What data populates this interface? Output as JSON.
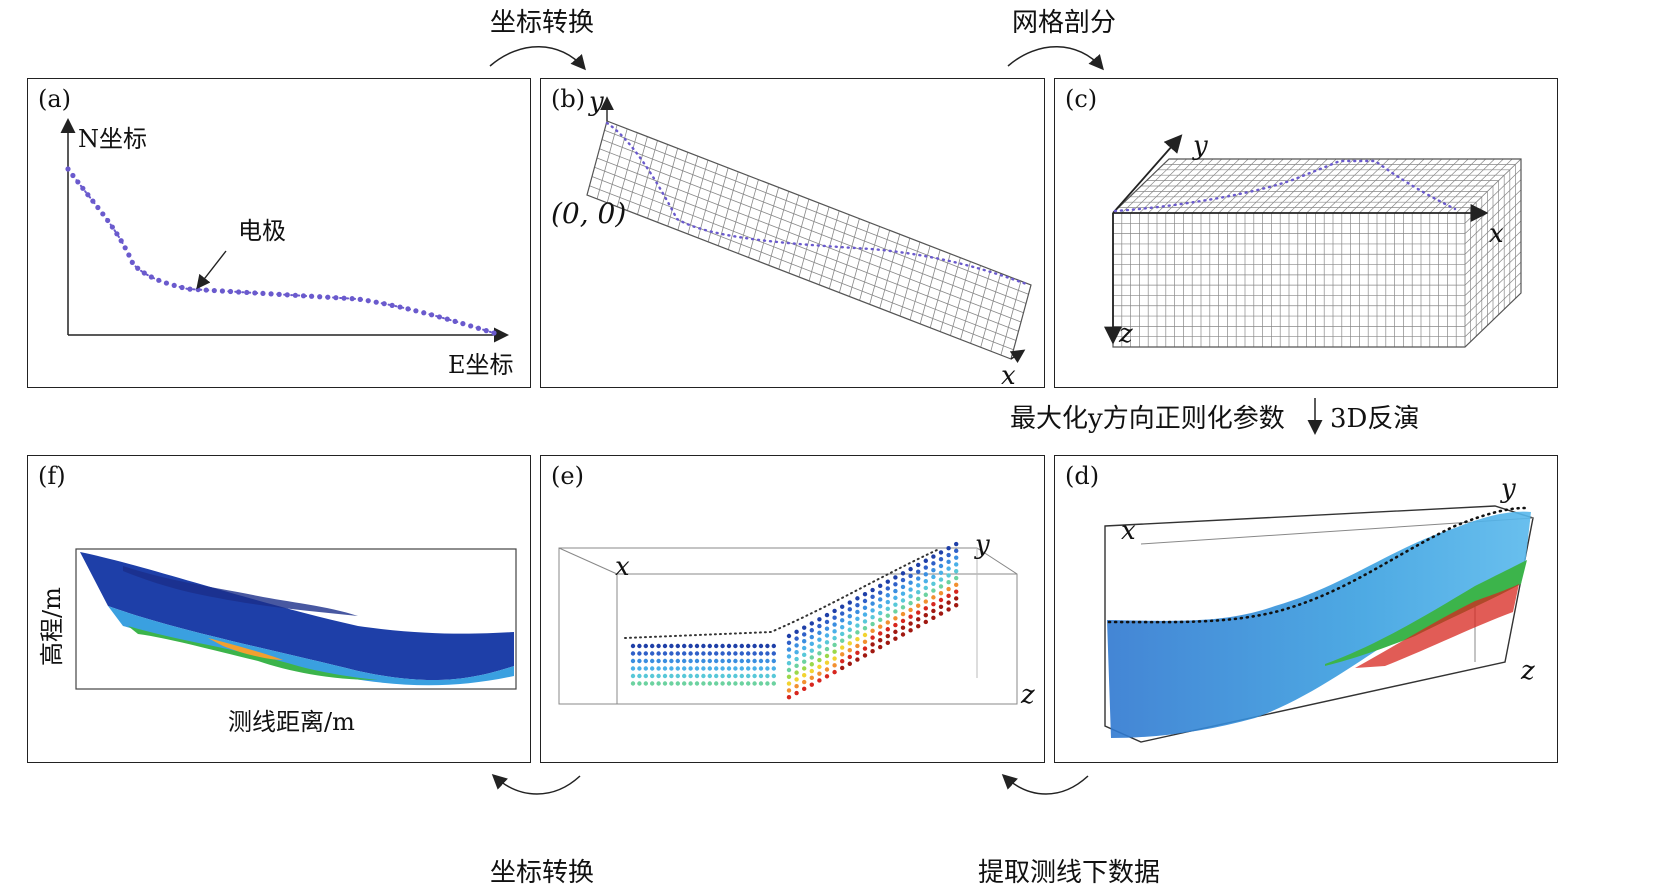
{
  "arrows": {
    "top_left": "坐标转换",
    "top_right": "网格剖分",
    "right_side_left": "最大化y方向正则化参数",
    "right_side_right": "3D反演",
    "bottom_left": "坐标转换",
    "bottom_right": "提取测线下数据"
  },
  "panels": {
    "a": {
      "label": "(a)",
      "y_axis": "N坐标",
      "x_axis": "E坐标",
      "callout": "电极"
    },
    "b": {
      "label": "(b)",
      "y_axis": "y",
      "x_axis": "x",
      "origin": "(0, 0)"
    },
    "c": {
      "label": "(c)",
      "y_axis": "y",
      "x_axis": "x",
      "z_axis": "z"
    },
    "d": {
      "label": "(d)",
      "x_axis": "x",
      "y_axis": "y",
      "z_axis": "z"
    },
    "e": {
      "label": "(e)",
      "x_axis": "x",
      "y_axis": "y",
      "z_axis": "z"
    },
    "f": {
      "label": "(f)",
      "y_axis": "高程/m",
      "x_axis": "测线距离/m"
    }
  },
  "colors": {
    "electrode": "#6a5acd",
    "frame": "#222222",
    "deep_blue": "#1e3fa8",
    "light_blue": "#3aa0e0",
    "green": "#3cb44b",
    "yellow": "#f2e530",
    "red": "#d7261e"
  }
}
